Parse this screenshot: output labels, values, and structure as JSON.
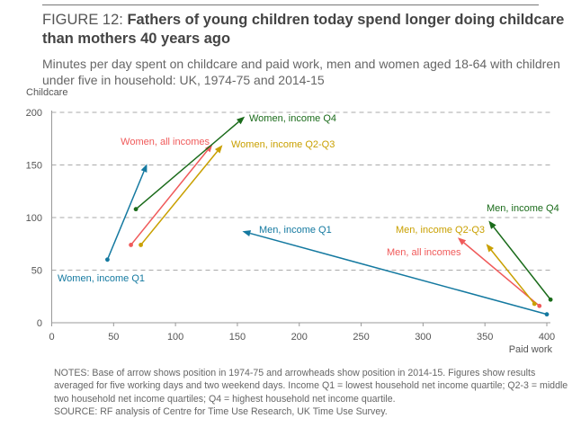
{
  "figure": {
    "label": "FIGURE 12: ",
    "title": "Fathers of young children today spend longer doing childcare than mothers 40 years ago",
    "subtitle": "Minutes per day spent on childcare and paid work, men and women aged 18-64  with children under five in household: UK, 1974-75 and 2014-15",
    "notes": "NOTES: Base of arrow shows position in 1974-75 and arrowheads show position in 2014-15. Figures show results averaged for five working days and two weekend days. Income Q1 = lowest household net income quartile; Q2-3 = middle two household net income quartiles; Q4 = highest household net income quartile.",
    "source": "SOURCE: RF analysis of Centre for Time Use Research, UK Time Use Survey."
  },
  "chart_data": {
    "type": "scatter",
    "subtype": "arrow",
    "title": "Fathers of young children today spend longer doing childcare than mothers 40 years ago",
    "xlabel": "Paid work",
    "ylabel": "Childcare",
    "xlim": [
      0,
      400
    ],
    "ylim": [
      0,
      200
    ],
    "xticks": [
      0,
      50,
      100,
      150,
      200,
      250,
      300,
      350,
      400
    ],
    "yticks": [
      0,
      50,
      100,
      150,
      200
    ],
    "grid": "horizontal-dashed",
    "legend": "inline-labels",
    "series": [
      {
        "name": "Women, income Q1",
        "color": "#1479a0",
        "start": [
          45,
          60
        ],
        "end": [
          77,
          151
        ]
      },
      {
        "name": "Women, all incomes",
        "color": "#f05a5a",
        "start": [
          64,
          74
        ],
        "end": [
          130,
          170
        ]
      },
      {
        "name": "Women, income Q2-Q3",
        "color": "#c9a000",
        "start": [
          72,
          74
        ],
        "end": [
          138,
          169
        ]
      },
      {
        "name": "Women, income Q4",
        "color": "#1a6b1a",
        "start": [
          68,
          108
        ],
        "end": [
          156,
          196
        ]
      },
      {
        "name": "Men, income Q1",
        "color": "#1479a0",
        "start": [
          400,
          8
        ],
        "end": [
          154,
          87
        ]
      },
      {
        "name": "Men, all incomes",
        "color": "#f05a5a",
        "start": [
          394,
          16
        ],
        "end": [
          328,
          81
        ]
      },
      {
        "name": "Men, income Q2-Q3",
        "color": "#c9a000",
        "start": [
          390,
          18
        ],
        "end": [
          351,
          75
        ]
      },
      {
        "name": "Men, income Q4",
        "color": "#1a6b1a",
        "start": [
          403,
          22
        ],
        "end": [
          353,
          97
        ]
      }
    ]
  }
}
